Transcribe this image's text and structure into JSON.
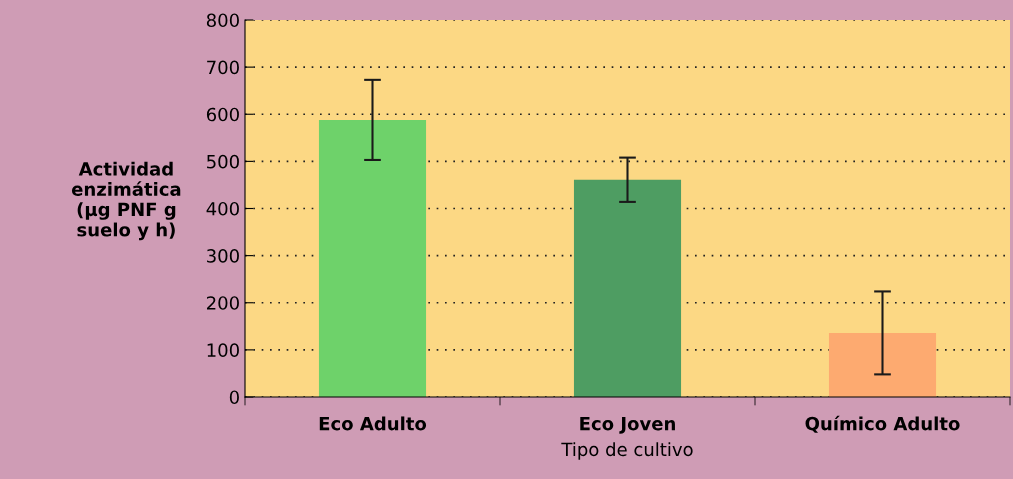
{
  "chart_data": {
    "type": "bar",
    "categories": [
      "Eco Adulto",
      "Eco Joven",
      "Químico Adulto"
    ],
    "values": [
      588,
      461,
      136
    ],
    "colors": [
      "#6ed26a",
      "#4e9d62",
      "#fdaa70"
    ],
    "errors": [
      85,
      47,
      88
    ],
    "xlabel": "Tipo de cultivo",
    "ylabel": "Actividad\nenzimática\n(µg PNF g\nsuelo y h)",
    "ylim": [
      0,
      800
    ],
    "yticks": [
      0,
      100,
      200,
      300,
      400,
      500,
      600,
      700,
      800
    ],
    "grid": "y"
  }
}
